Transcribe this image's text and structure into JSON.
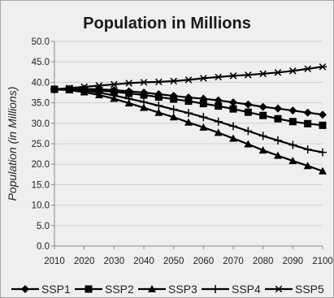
{
  "chart_data": {
    "type": "line",
    "title": "Population in Millions",
    "xlabel": "",
    "ylabel": "Population (in Millions)",
    "x": [
      2010,
      2015,
      2020,
      2025,
      2030,
      2035,
      2040,
      2045,
      2050,
      2055,
      2060,
      2065,
      2070,
      2075,
      2080,
      2085,
      2090,
      2095,
      2100
    ],
    "xticks": [
      2010,
      2020,
      2030,
      2040,
      2050,
      2060,
      2070,
      2080,
      2090,
      2100
    ],
    "xlim": [
      2010,
      2100
    ],
    "yticks": [
      "0.0",
      "5.0",
      "10.0",
      "15.0",
      "20.0",
      "25.0",
      "30.0",
      "35.0",
      "40.0",
      "45.0",
      "50.0"
    ],
    "ylim": [
      0,
      50
    ],
    "grid": "horizontal",
    "legend_position": "bottom",
    "series": [
      {
        "name": "SSP1",
        "marker": "diamond",
        "values": [
          38.3,
          38.4,
          38.4,
          38.3,
          38.1,
          37.8,
          37.5,
          37.1,
          36.7,
          36.3,
          36.0,
          35.6,
          35.1,
          34.6,
          34.0,
          33.6,
          33.1,
          32.6,
          32.1
        ]
      },
      {
        "name": "SSP2",
        "marker": "square",
        "values": [
          38.3,
          38.3,
          38.2,
          38.0,
          37.7,
          37.3,
          36.9,
          36.4,
          35.9,
          35.4,
          34.8,
          34.2,
          33.5,
          32.7,
          31.9,
          31.1,
          30.4,
          29.9,
          29.5
        ]
      },
      {
        "name": "SSP3",
        "marker": "triangle",
        "values": [
          38.3,
          38.1,
          37.6,
          36.9,
          36.0,
          34.9,
          33.8,
          32.6,
          31.5,
          30.2,
          29.0,
          27.7,
          26.3,
          24.9,
          23.4,
          22.1,
          20.8,
          19.6,
          18.3
        ]
      },
      {
        "name": "SSP4",
        "marker": "plus",
        "values": [
          38.3,
          38.3,
          38.0,
          37.5,
          36.8,
          36.0,
          35.2,
          34.3,
          33.4,
          32.5,
          31.5,
          30.4,
          29.3,
          28.1,
          26.9,
          25.8,
          24.7,
          23.6,
          22.9
        ]
      },
      {
        "name": "SSP5",
        "marker": "asterisk",
        "values": [
          38.3,
          38.6,
          38.9,
          39.2,
          39.5,
          39.8,
          40.0,
          40.1,
          40.3,
          40.6,
          41.0,
          41.3,
          41.6,
          41.8,
          42.1,
          42.4,
          42.8,
          43.3,
          43.8
        ]
      }
    ],
    "line_color": "#000000"
  }
}
